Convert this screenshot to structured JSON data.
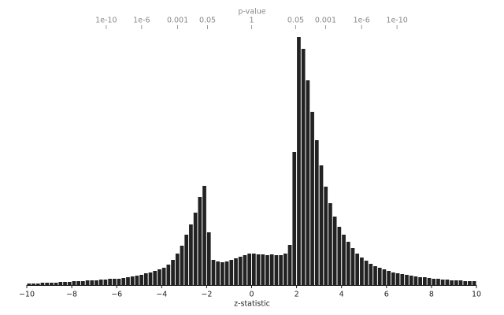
{
  "chart_data": {
    "type": "histogram",
    "xlabel": "z-statistic",
    "top_axis_label": "p-value",
    "color": "#222222",
    "bins": [
      -10,
      -9.8,
      -9.6,
      -9.4,
      -9.2,
      -9,
      -8.8,
      -8.6,
      -8.4,
      -8.2,
      -8,
      -7.8,
      -7.6,
      -7.4,
      -7.2,
      -7,
      -6.8,
      -6.6,
      -6.4,
      -6.2,
      -6,
      -5.8,
      -5.6,
      -5.4,
      -5.2,
      -5,
      -4.8,
      -4.6,
      -4.4,
      -4.2,
      -4,
      -3.8,
      -3.6,
      -3.4,
      -3.2,
      -3,
      -2.8,
      -2.6,
      -2.4,
      -2.2,
      -2,
      -1.8,
      -1.6,
      -1.4,
      -1.2,
      -1,
      -0.8,
      -0.6,
      -0.4,
      -0.2,
      0,
      0.2,
      0.4,
      0.6,
      0.8,
      1,
      1.2,
      1.4,
      1.6,
      1.8,
      2,
      2.2,
      2.4,
      2.6,
      2.8,
      3,
      3.2,
      3.4,
      3.6,
      3.8,
      4,
      4.2,
      4.4,
      4.6,
      4.8,
      5,
      5.2,
      5.4,
      5.6,
      5.8,
      6,
      6.2,
      6.4,
      6.6,
      6.8,
      7,
      7.2,
      7.4,
      7.6,
      7.8,
      8,
      8.2,
      8.4,
      8.6,
      8.8,
      9,
      9.2,
      9.4,
      9.6,
      9.8,
      10
    ],
    "values": [
      2,
      2,
      2,
      3,
      3,
      3,
      3,
      4,
      4,
      4,
      5,
      5,
      5,
      6,
      6,
      6,
      7,
      7,
      8,
      8,
      8,
      9,
      10,
      11,
      12,
      13,
      15,
      16,
      18,
      20,
      22,
      26,
      32,
      40,
      50,
      64,
      77,
      92,
      112,
      126,
      67,
      32,
      30,
      29,
      30,
      32,
      34,
      36,
      38,
      40,
      40,
      39,
      39,
      38,
      39,
      38,
      38,
      40,
      51,
      169,
      315,
      300,
      260,
      220,
      184,
      152,
      125,
      104,
      87,
      74,
      64,
      55,
      47,
      40,
      35,
      31,
      27,
      24,
      22,
      20,
      18,
      16,
      15,
      14,
      13,
      12,
      11,
      10,
      10,
      9,
      8,
      8,
      7,
      7,
      6,
      6,
      6,
      5,
      5,
      5
    ],
    "xlim": [
      -10,
      10
    ],
    "ylim": [
      0,
      320
    ],
    "xticks": [
      {
        "value": -10,
        "label": "−10"
      },
      {
        "value": -8,
        "label": "−8"
      },
      {
        "value": -6,
        "label": "−6"
      },
      {
        "value": -4,
        "label": "−4"
      },
      {
        "value": -2,
        "label": "−2"
      },
      0,
      2,
      4,
      6,
      8,
      10
    ],
    "top_ticks": [
      {
        "value": -6.466951,
        "label": "1e-10"
      },
      {
        "value": -4.891638,
        "label": "1e-6"
      },
      {
        "value": -3.290527,
        "label": "0.001"
      },
      {
        "value": -1.959964,
        "label": "0.05"
      },
      {
        "value": 0,
        "label": "1"
      },
      {
        "value": 1.959964,
        "label": "0.05"
      },
      {
        "value": 3.290527,
        "label": "0.001"
      },
      {
        "value": 4.891638,
        "label": "1e-6"
      },
      {
        "value": 6.466951,
        "label": "1e-10"
      }
    ]
  }
}
